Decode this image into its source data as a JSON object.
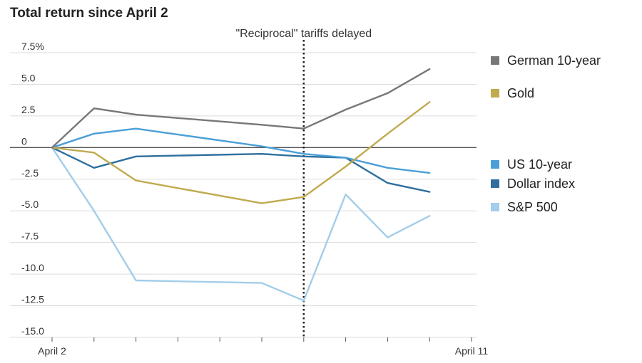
{
  "chart_data": {
    "type": "line",
    "title": "Total return since April 2",
    "annotation": "\"Reciprocal\" tariffs delayed",
    "annotation_x": 7,
    "xlabel": "",
    "ylabel": "",
    "x": [
      1,
      2,
      3,
      4,
      5,
      6,
      7,
      8,
      9,
      10,
      11
    ],
    "x_tick_labels": [
      "April 2",
      "",
      "",
      "",
      "",
      "",
      "",
      "",
      "",
      "",
      "April 11"
    ],
    "ylim": [
      -15,
      7.5
    ],
    "y_ticks": [
      7.5,
      5.0,
      2.5,
      0,
      -2.5,
      -5.0,
      -7.5,
      -10.0,
      -12.5,
      -15.0
    ],
    "y_tick_labels": [
      "7.5%",
      "5.0",
      "2.5",
      "0",
      "-2.5",
      "-5.0",
      "-7.5",
      "-10.0",
      "-12.5",
      "-15.0"
    ],
    "grid": true,
    "legend_position": "right",
    "series": [
      {
        "name": "German 10-year",
        "color": "#777777",
        "x": [
          1,
          2,
          3,
          6,
          7,
          8,
          9,
          10
        ],
        "values": [
          0,
          3.1,
          2.6,
          1.8,
          1.5,
          3.0,
          4.3,
          6.2
        ]
      },
      {
        "name": "Gold",
        "color": "#c0aa4e",
        "x": [
          1,
          2,
          3,
          6,
          7,
          8,
          9,
          10
        ],
        "values": [
          0,
          -0.4,
          -2.6,
          -4.4,
          -3.9,
          -1.5,
          1.1,
          3.6
        ]
      },
      {
        "name": "US 10-year",
        "color": "#4a9fd8",
        "x": [
          1,
          2,
          3,
          6,
          7,
          8,
          9,
          10
        ],
        "values": [
          0,
          1.1,
          1.5,
          0.1,
          -0.5,
          -0.8,
          -1.6,
          -2.0
        ]
      },
      {
        "name": "Dollar index",
        "color": "#2e6f9e",
        "x": [
          1,
          2,
          3,
          6,
          7,
          8,
          9,
          10
        ],
        "values": [
          0,
          -1.6,
          -0.7,
          -0.5,
          -0.7,
          -0.8,
          -2.8,
          -3.5
        ]
      },
      {
        "name": "S&P 500",
        "color": "#a3cde9",
        "x": [
          1,
          2,
          3,
          6,
          7,
          8,
          9,
          10
        ],
        "values": [
          0,
          -5.0,
          -10.5,
          -10.7,
          -12.1,
          -3.7,
          -7.1,
          -5.4
        ]
      }
    ]
  }
}
